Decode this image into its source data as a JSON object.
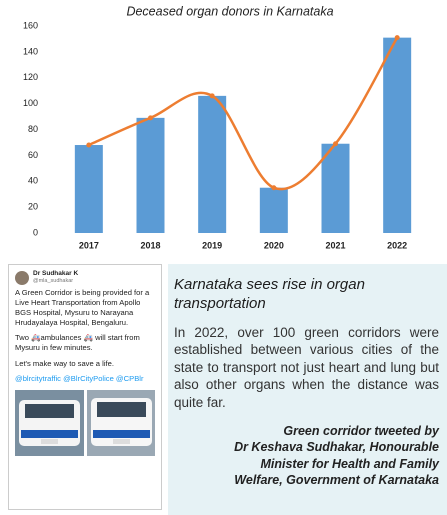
{
  "chart_data": {
    "type": "bar",
    "title": "Deceased organ donors in Karnataka",
    "categories": [
      "2017",
      "2018",
      "2019",
      "2020",
      "2021",
      "2022"
    ],
    "values": [
      68,
      89,
      106,
      35,
      69,
      151
    ],
    "color": "#5b9bd5",
    "line_overlay": true,
    "line_color": "#ed7d31",
    "ylim": [
      0,
      160
    ],
    "yticks": [
      0,
      20,
      40,
      60,
      80,
      100,
      120,
      140,
      160
    ],
    "grid": false
  },
  "tweet": {
    "author": "Dr Sudhakar K",
    "handle": "@mla_sudhakar",
    "paragraphs": [
      "A Green Corridor is being provided for a Live Heart Transportation from Apollo BGS Hospital, Mysuru to Narayana Hrudayalaya Hospital, Bengaluru.",
      "Two 🚑ambulances 🚑 will start from Mysuru in few minutes.",
      "Let's make way to save a life."
    ],
    "tags": "@blrcitytraffic @BlrCityPolice @CPBlr"
  },
  "article": {
    "heading": "Karnataka sees rise in organ transportation",
    "body": "In 2022, over 100 green corridors were established between various cities of the state to transport not just heart and lung but also other organs when the distance was quite far.",
    "caption": [
      "Green corridor tweeted by",
      "Dr Keshava Sudhakar, Honourable",
      "Minister for Health and Family",
      "Welfare, Government of Karnataka"
    ]
  }
}
